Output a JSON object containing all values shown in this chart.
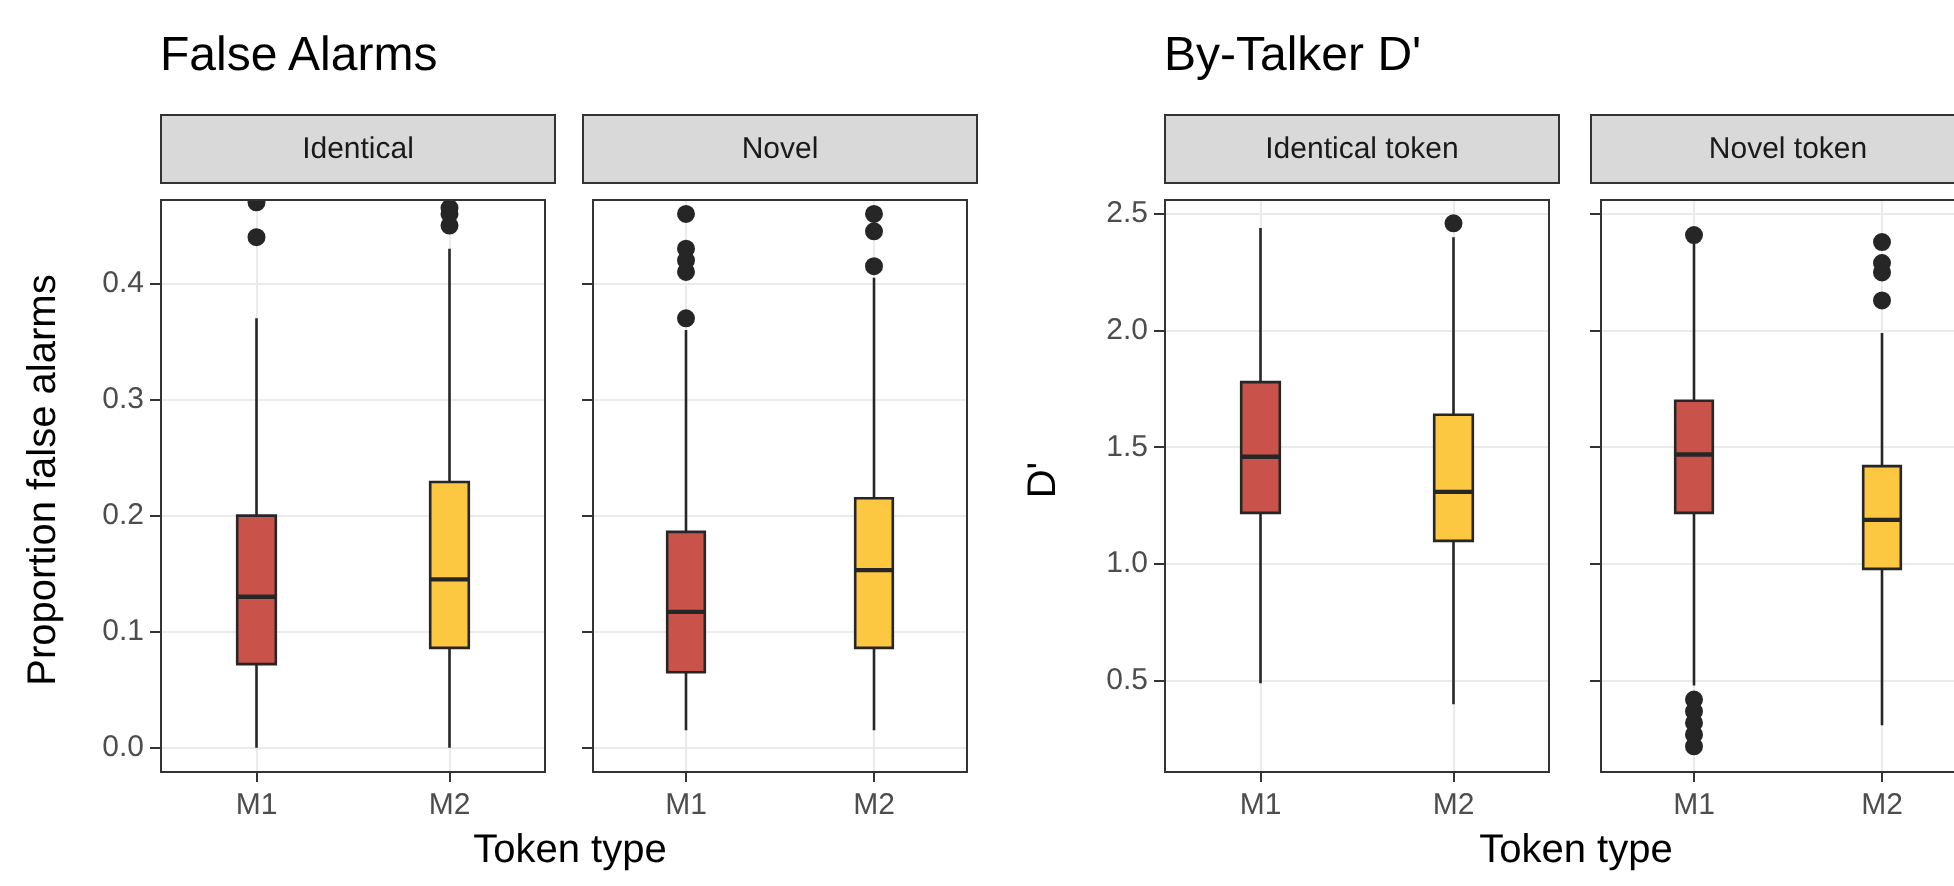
{
  "chart_data": [
    {
      "type": "box",
      "title": "False Alarms",
      "subtitle": "Identical",
      "xlabel": "Token type",
      "ylabel": "Proportion false alarms",
      "categories": [
        "M1",
        "M2"
      ],
      "colors": [
        "#c9534b",
        "#fcc741"
      ],
      "boxes": [
        {
          "low": 0,
          "q1": 0.072,
          "median": 0.13,
          "q3": 0.2,
          "high": 0.37,
          "outliers": [
            0.44,
            0.47
          ]
        },
        {
          "low": 0,
          "q1": 0.086,
          "median": 0.145,
          "q3": 0.229,
          "high": 0.43,
          "outliers": [
            0.45,
            0.46,
            0.465
          ]
        }
      ],
      "ylim": [
        -0.021,
        0.472
      ],
      "yticks": [
        {
          "value": 0,
          "label": "0.0"
        },
        0.1,
        0.2,
        0.3,
        0.4
      ],
      "grid": true
    },
    {
      "type": "box",
      "subtitle": "Novel",
      "categories": [
        "M1",
        "M2"
      ],
      "colors": [
        "#c9534b",
        "#fcc741"
      ],
      "boxes": [
        {
          "low": 0.015,
          "q1": 0.065,
          "median": 0.117,
          "q3": 0.186,
          "high": 0.36,
          "outliers": [
            0.37,
            0.41,
            0.42,
            0.43,
            0.46
          ]
        },
        {
          "low": 0.015,
          "q1": 0.086,
          "median": 0.153,
          "q3": 0.215,
          "high": 0.405,
          "outliers": [
            0.415,
            0.445,
            0.46
          ]
        }
      ],
      "ylim": [
        -0.021,
        0.472
      ],
      "yticks": [
        {
          "value": 0,
          "label": null
        },
        {
          "value": 0.1,
          "label": null
        },
        {
          "value": 0.2,
          "label": null
        },
        {
          "value": 0.3,
          "label": null
        },
        {
          "value": 0.4,
          "label": null
        }
      ],
      "grid": true,
      "tick_labels": "x"
    },
    {
      "type": "box",
      "title": "By-Talker D'",
      "subtitle": "Identical token",
      "xlabel": "Token type",
      "ylabel": "D'",
      "categories": [
        "M1",
        "M2"
      ],
      "colors": [
        "#c9534b",
        "#fcc741"
      ],
      "boxes": [
        {
          "low": 0.49,
          "q1": 1.22,
          "median": 1.46,
          "q3": 1.78,
          "high": 2.44
        },
        {
          "low": 0.4,
          "q1": 1.1,
          "median": 1.31,
          "q3": 1.64,
          "high": 2.4,
          "outliers": [
            2.46
          ]
        }
      ],
      "ylim": [
        0.11,
        2.56
      ],
      "yticks": [
        0.5,
        {
          "value": 1,
          "label": "1.0"
        },
        1.5,
        {
          "value": 2,
          "label": "2.0"
        },
        2.5
      ],
      "grid": true
    },
    {
      "type": "box",
      "subtitle": "Novel token",
      "categories": [
        "M1",
        "M2"
      ],
      "colors": [
        "#c9534b",
        "#fcc741"
      ],
      "boxes": [
        {
          "low": 0.48,
          "q1": 1.22,
          "median": 1.47,
          "q3": 1.7,
          "high": 2.38,
          "outliers": [
            0.22,
            0.27,
            0.32,
            0.37,
            0.42,
            2.41
          ]
        },
        {
          "low": 0.31,
          "q1": 0.98,
          "median": 1.19,
          "q3": 1.42,
          "high": 1.99,
          "outliers": [
            2.13,
            2.25,
            2.29,
            2.38
          ]
        }
      ],
      "ylim": [
        0.11,
        2.56
      ],
      "yticks": [
        {
          "value": 0.5,
          "label": null
        },
        {
          "value": 1,
          "label": null
        },
        {
          "value": 1.5,
          "label": null
        },
        {
          "value": 2,
          "label": null
        },
        {
          "value": 2.5,
          "label": null
        }
      ],
      "grid": true,
      "tick_labels": "x"
    }
  ]
}
